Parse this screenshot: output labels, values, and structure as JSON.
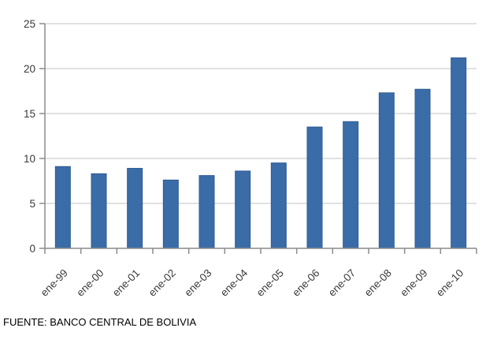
{
  "chart_data": {
    "type": "bar",
    "categories": [
      "ene-99",
      "ene-00",
      "ene-01",
      "ene-02",
      "ene-03",
      "ene-04",
      "ene-05",
      "ene-06",
      "ene-07",
      "ene-08",
      "ene-09",
      "ene-10"
    ],
    "values": [
      9.1,
      8.3,
      8.9,
      7.6,
      8.1,
      8.6,
      9.5,
      13.5,
      14.1,
      17.3,
      17.7,
      21.2
    ],
    "ylim": [
      0,
      25
    ],
    "ytick_step": 5,
    "ytick_labels": [
      "0",
      "5",
      "10",
      "15",
      "20",
      "25"
    ],
    "grid": true,
    "legend_position": "none",
    "x_label_rotation_deg": -45,
    "bar_color": "#3A6CA8",
    "bar_border_color": "#2F5B92",
    "gridline_color": "#C3C3C3",
    "axis_color": "#8C8C8C",
    "tick_label_color": "#3A3A3A"
  },
  "footer": {
    "source_note": "FUENTE: BANCO CENTRAL DE BOLIVIA"
  }
}
